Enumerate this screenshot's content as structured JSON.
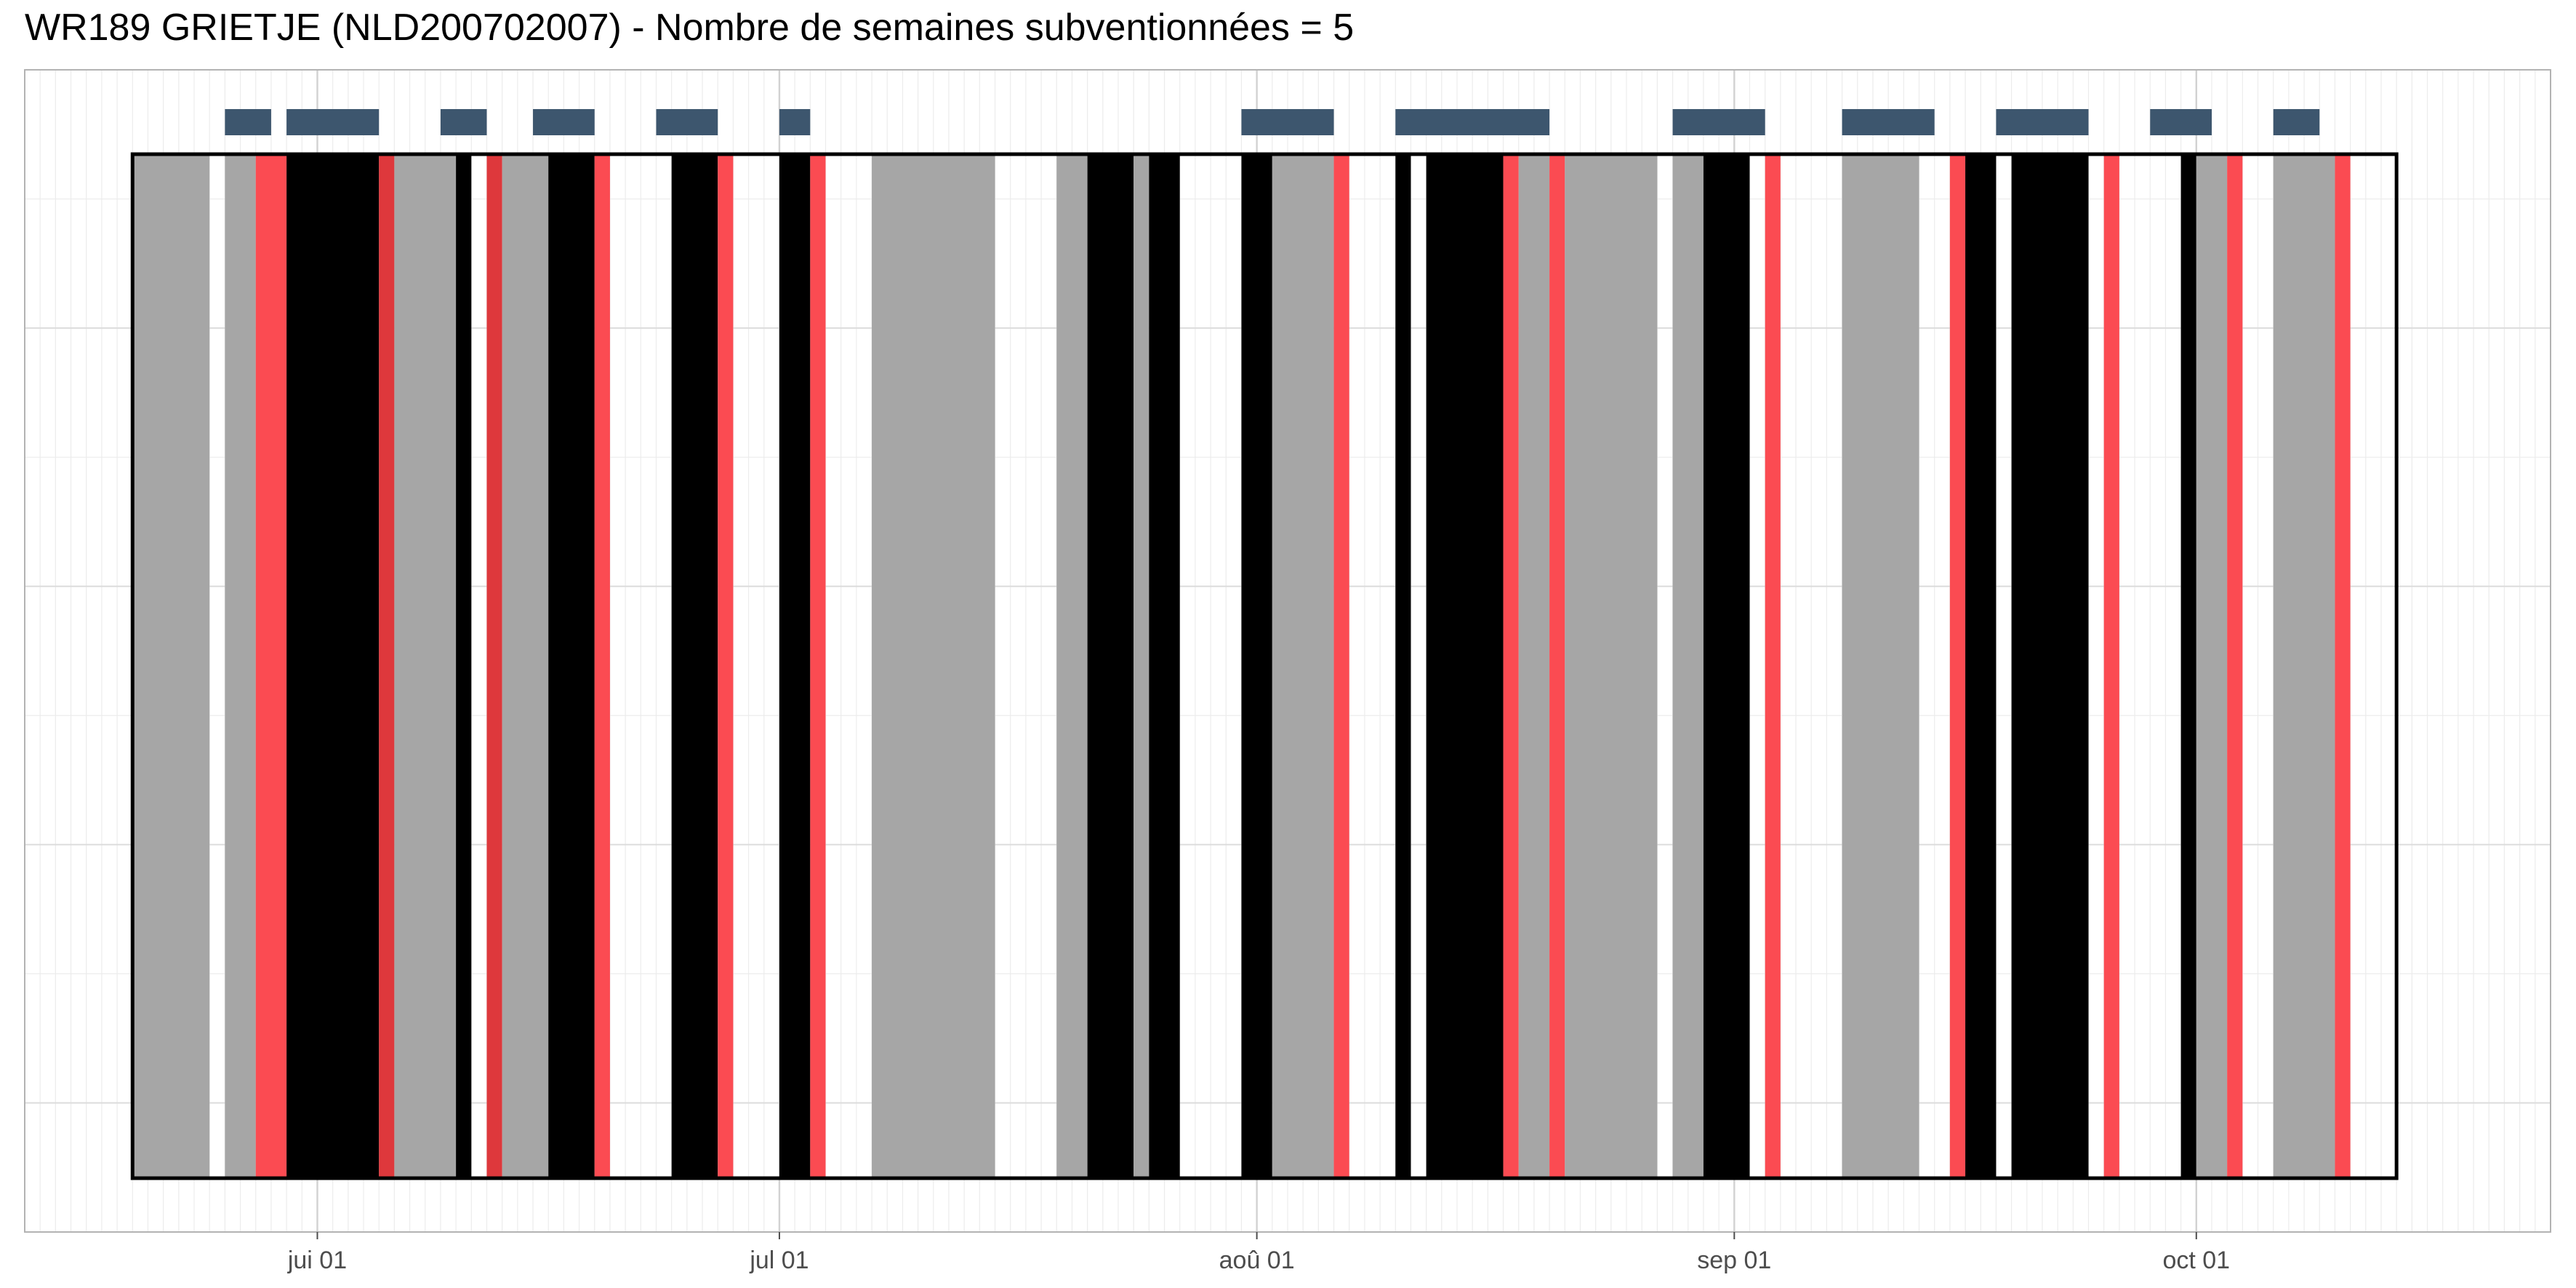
{
  "chart_data": {
    "type": "timeline",
    "title": "WR189 GRIETJE (NLD200702007) - Nombre de semaines subventionnées = 5",
    "x_axis": {
      "unit": "date",
      "range": [
        "2023-05-13",
        "2023-10-24"
      ],
      "ticks": [
        {
          "date": "2023-06-01",
          "label": "jui 01"
        },
        {
          "date": "2023-07-01",
          "label": "jul 01"
        },
        {
          "date": "2023-08-01",
          "label": "aoû 01"
        },
        {
          "date": "2023-09-01",
          "label": "sep 01"
        },
        {
          "date": "2023-10-01",
          "label": "oct 01"
        }
      ]
    },
    "grid": true,
    "frame": {
      "start": "2023-05-20",
      "end": "2023-10-14"
    },
    "colors": {
      "gray": "#a6a6a6",
      "black": "#000000",
      "red": "#fb4b52",
      "dark_red": "#de383c",
      "marker": "#3d566e",
      "frame": "#000000"
    },
    "top_markers": [
      {
        "start": "2023-05-26",
        "end": "2023-05-29"
      },
      {
        "start": "2023-05-30",
        "end": "2023-06-05"
      },
      {
        "start": "2023-06-09",
        "end": "2023-06-12"
      },
      {
        "start": "2023-06-15",
        "end": "2023-06-19"
      },
      {
        "start": "2023-06-23",
        "end": "2023-06-27"
      },
      {
        "start": "2023-07-01",
        "end": "2023-07-03"
      },
      {
        "start": "2023-07-31",
        "end": "2023-08-06"
      },
      {
        "start": "2023-08-10",
        "end": "2023-08-20"
      },
      {
        "start": "2023-08-28",
        "end": "2023-09-03"
      },
      {
        "start": "2023-09-08",
        "end": "2023-09-14"
      },
      {
        "start": "2023-09-18",
        "end": "2023-09-24"
      },
      {
        "start": "2023-09-28",
        "end": "2023-10-02"
      },
      {
        "start": "2023-10-06",
        "end": "2023-10-09"
      }
    ],
    "segments": [
      {
        "start": "2023-05-20",
        "end": "2023-05-25",
        "category": "gray"
      },
      {
        "start": "2023-05-26",
        "end": "2023-05-28",
        "category": "gray"
      },
      {
        "start": "2023-05-28",
        "end": "2023-05-30",
        "category": "red"
      },
      {
        "start": "2023-05-30",
        "end": "2023-06-05",
        "category": "black"
      },
      {
        "start": "2023-06-05",
        "end": "2023-06-06",
        "category": "dark_red"
      },
      {
        "start": "2023-06-06",
        "end": "2023-06-10",
        "category": "gray"
      },
      {
        "start": "2023-06-10",
        "end": "2023-06-11",
        "category": "black"
      },
      {
        "start": "2023-06-12",
        "end": "2023-06-13",
        "category": "dark_red"
      },
      {
        "start": "2023-06-13",
        "end": "2023-06-16",
        "category": "gray"
      },
      {
        "start": "2023-06-16",
        "end": "2023-06-19",
        "category": "black"
      },
      {
        "start": "2023-06-19",
        "end": "2023-06-20",
        "category": "red"
      },
      {
        "start": "2023-06-24",
        "end": "2023-06-27",
        "category": "black"
      },
      {
        "start": "2023-06-27",
        "end": "2023-06-28",
        "category": "red"
      },
      {
        "start": "2023-07-01",
        "end": "2023-07-03",
        "category": "black"
      },
      {
        "start": "2023-07-03",
        "end": "2023-07-04",
        "category": "red"
      },
      {
        "start": "2023-07-07",
        "end": "2023-07-15",
        "category": "gray"
      },
      {
        "start": "2023-07-19",
        "end": "2023-07-21",
        "category": "gray"
      },
      {
        "start": "2023-07-21",
        "end": "2023-07-24",
        "category": "black"
      },
      {
        "start": "2023-07-24",
        "end": "2023-07-25",
        "category": "gray"
      },
      {
        "start": "2023-07-25",
        "end": "2023-07-27",
        "category": "black"
      },
      {
        "start": "2023-07-31",
        "end": "2023-08-02",
        "category": "black"
      },
      {
        "start": "2023-08-02",
        "end": "2023-08-06",
        "category": "gray"
      },
      {
        "start": "2023-08-06",
        "end": "2023-08-07",
        "category": "red"
      },
      {
        "start": "2023-08-10",
        "end": "2023-08-11",
        "category": "black"
      },
      {
        "start": "2023-08-12",
        "end": "2023-08-17",
        "category": "black"
      },
      {
        "start": "2023-08-17",
        "end": "2023-08-18",
        "category": "red"
      },
      {
        "start": "2023-08-18",
        "end": "2023-08-20",
        "category": "gray"
      },
      {
        "start": "2023-08-20",
        "end": "2023-08-21",
        "category": "red"
      },
      {
        "start": "2023-08-21",
        "end": "2023-08-27",
        "category": "gray"
      },
      {
        "start": "2023-08-28",
        "end": "2023-08-30",
        "category": "gray"
      },
      {
        "start": "2023-08-30",
        "end": "2023-09-02",
        "category": "black"
      },
      {
        "start": "2023-09-03",
        "end": "2023-09-04",
        "category": "red"
      },
      {
        "start": "2023-09-08",
        "end": "2023-09-13",
        "category": "gray"
      },
      {
        "start": "2023-09-15",
        "end": "2023-09-16",
        "category": "red"
      },
      {
        "start": "2023-09-16",
        "end": "2023-09-18",
        "category": "black"
      },
      {
        "start": "2023-09-19",
        "end": "2023-09-24",
        "category": "black"
      },
      {
        "start": "2023-09-25",
        "end": "2023-09-26",
        "category": "red"
      },
      {
        "start": "2023-09-30",
        "end": "2023-10-01",
        "category": "black"
      },
      {
        "start": "2023-10-01",
        "end": "2023-10-03",
        "category": "gray"
      },
      {
        "start": "2023-10-03",
        "end": "2023-10-04",
        "category": "red"
      },
      {
        "start": "2023-10-06",
        "end": "2023-10-10",
        "category": "gray"
      },
      {
        "start": "2023-10-10",
        "end": "2023-10-11",
        "category": "red"
      }
    ]
  }
}
